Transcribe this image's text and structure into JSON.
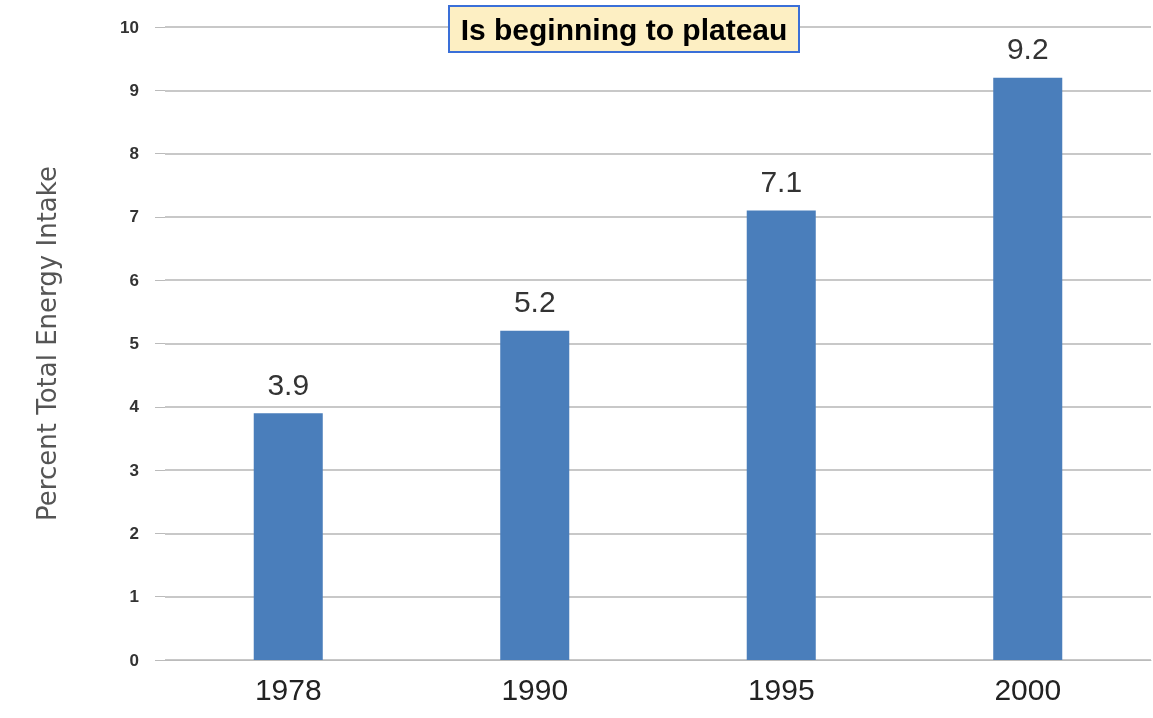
{
  "chart_data": {
    "type": "bar",
    "title": "Is beginning to plateau",
    "ylabel": "Percent Total Energy Intake",
    "categories": [
      "1978",
      "1990",
      "1995",
      "2000"
    ],
    "values": [
      3.9,
      5.2,
      7.1,
      9.2
    ],
    "color": "#4a7ebb",
    "ylim": [
      0,
      10
    ],
    "yticks": [
      0,
      1,
      2,
      3,
      4,
      5,
      6,
      7,
      8,
      9,
      10
    ],
    "grid": "y",
    "data_labels": true
  }
}
